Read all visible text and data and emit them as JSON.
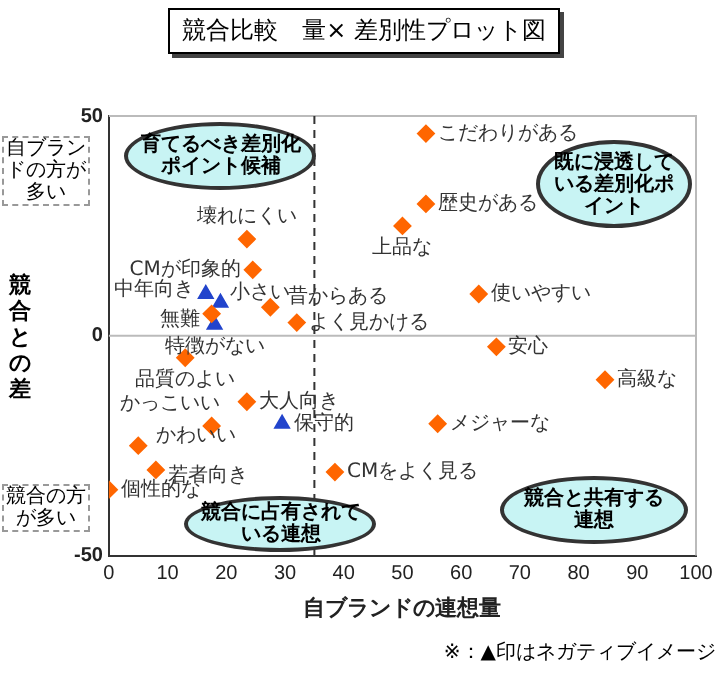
{
  "chart_data": {
    "type": "scatter",
    "title": "競合比較　量× 差別性プロット図",
    "xlabel": "自ブランドの連想量",
    "ylabel": "競合との差",
    "xlim": [
      0,
      100
    ],
    "xticks": [
      0,
      10,
      20,
      30,
      40,
      50,
      60,
      70,
      80,
      90,
      100
    ],
    "ylim": [
      -50,
      50
    ],
    "yticks": [
      -50,
      0,
      50
    ],
    "grid": false,
    "legend": false,
    "series": [
      {
        "color": "#ff6600",
        "marker": "diamond",
        "x": [
          54,
          54,
          50,
          63,
          66,
          84.5,
          56,
          38.5,
          0,
          8,
          5,
          17.5,
          23.5,
          13,
          17.5,
          32,
          27.5,
          24.5,
          23.5
        ],
        "values": [
          46,
          30,
          25,
          9.5,
          -2.5,
          -10,
          -20,
          -31,
          -35,
          -30.5,
          -25,
          -20.5,
          -15,
          -5,
          5,
          3,
          6.5,
          15,
          22
        ],
        "value_labels": [
          "こだわりがある",
          "歴史がある",
          "上品な",
          "使いやすい",
          "安心",
          "高級な",
          "メジャーな",
          "CMをよく見る",
          "個性的な",
          "若者向き",
          "かわいい",
          "かっこいい",
          "大人向き",
          "品質のよい",
          "無難",
          "よく見かける",
          "昔からある",
          "CMが印象的",
          "壊れにくい"
        ]
      },
      {
        "color": "#2244cc",
        "marker": "triangle",
        "x": [
          16.5,
          19,
          18,
          29.5
        ],
        "values": [
          9.5,
          7.5,
          2.5,
          -20
        ],
        "value_labels": [
          "中年向き",
          "小さい",
          "特徴がない",
          "保守的"
        ]
      }
    ],
    "ref_lines": [
      {
        "axis": "x",
        "value": 35,
        "color": "#333333",
        "line_style": "dashed"
      },
      {
        "axis": "y",
        "value": 0,
        "color": "#bbbbbb",
        "line_style": "solid"
      }
    ],
    "annotations": [
      "育てるべき差別化ポイント候補",
      "既に浸透している差別化ポイント",
      "競合に占有されている連想",
      "競合と共有する連想",
      "自ブランドの方が多い",
      "競合の方が多い",
      "※：▲印はネガティブイメージ"
    ]
  }
}
